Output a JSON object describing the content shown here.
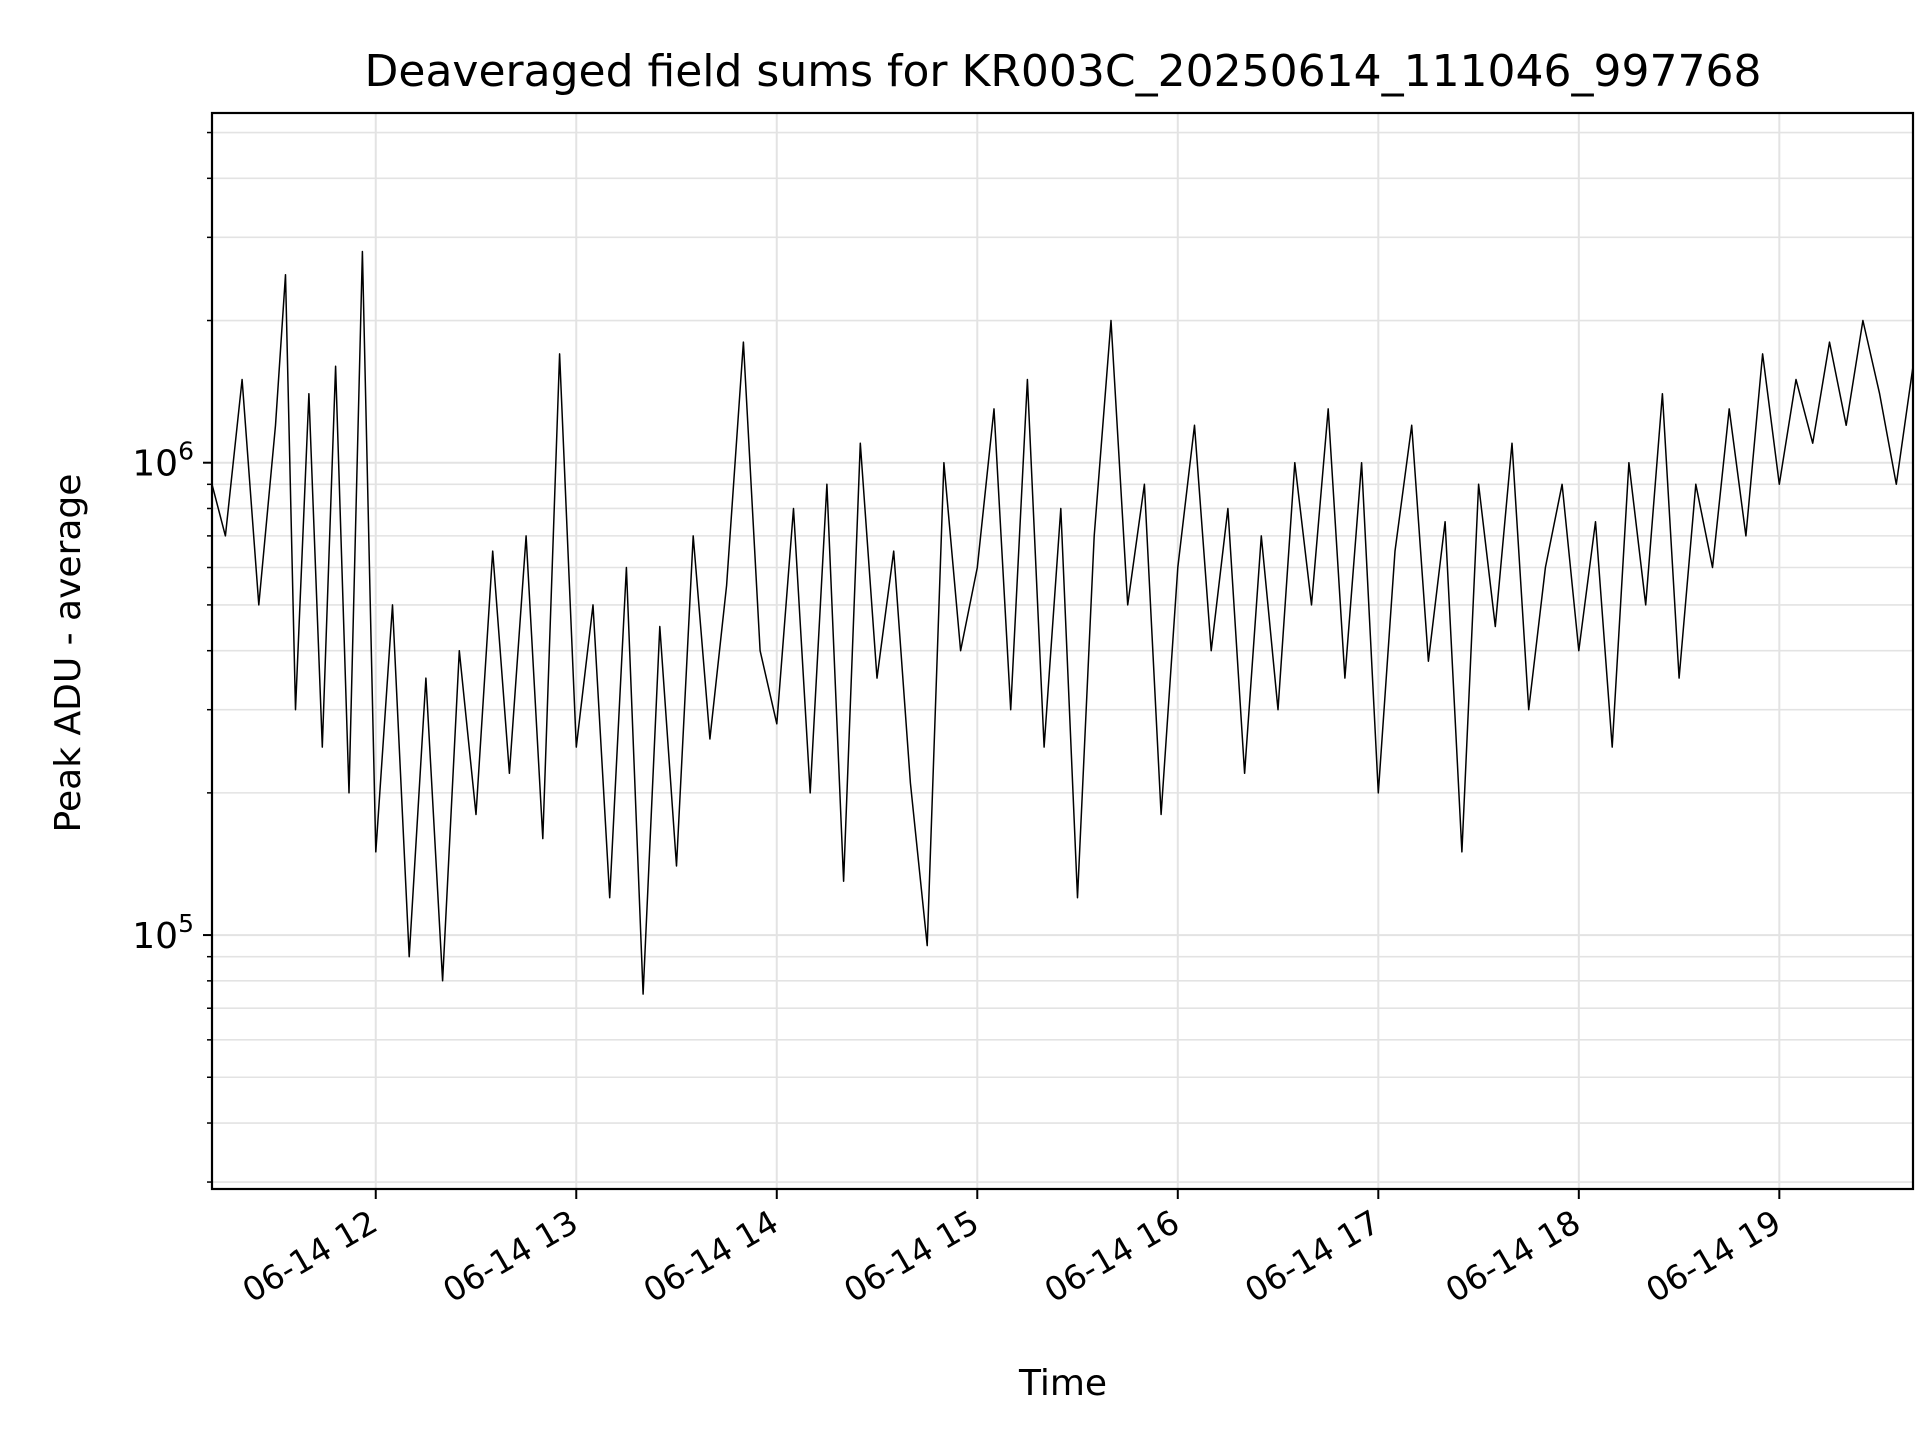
{
  "chart_data": {
    "type": "line",
    "title": "Deaveraged field sums for KR003C_20250614_111046_997768",
    "xlabel": "Time",
    "ylabel": "Peak ADU - average",
    "yscale": "log",
    "grid": true,
    "x_range": [
      "2025-06-14 11:11",
      "2025-06-14 19:40"
    ],
    "ylim": [
      29000,
      5500000
    ],
    "x_ticks": [
      {
        "value": "2025-06-14 12:00",
        "label": "06-14 12"
      },
      {
        "value": "2025-06-14 13:00",
        "label": "06-14 13"
      },
      {
        "value": "2025-06-14 14:00",
        "label": "06-14 14"
      },
      {
        "value": "2025-06-14 15:00",
        "label": "06-14 15"
      },
      {
        "value": "2025-06-14 16:00",
        "label": "06-14 16"
      },
      {
        "value": "2025-06-14 17:00",
        "label": "06-14 17"
      },
      {
        "value": "2025-06-14 18:00",
        "label": "06-14 18"
      },
      {
        "value": "2025-06-14 19:00",
        "label": "06-14 19"
      }
    ],
    "y_ticks": [
      {
        "value": 100000,
        "base": "10",
        "exponent": "5"
      },
      {
        "value": 1000000,
        "base": "10",
        "exponent": "6"
      }
    ],
    "series": [
      {
        "color": "#000000",
        "points": [
          [
            "2025-06-14 11:11",
            900000
          ],
          [
            "2025-06-14 11:15",
            700000
          ],
          [
            "2025-06-14 11:20",
            1500000
          ],
          [
            "2025-06-14 11:25",
            500000
          ],
          [
            "2025-06-14 11:30",
            1200000
          ],
          [
            "2025-06-14 11:33",
            2500000
          ],
          [
            "2025-06-14 11:36",
            300000
          ],
          [
            "2025-06-14 11:40",
            1400000
          ],
          [
            "2025-06-14 11:44",
            250000
          ],
          [
            "2025-06-14 11:48",
            1600000
          ],
          [
            "2025-06-14 11:52",
            200000
          ],
          [
            "2025-06-14 11:56",
            2800000
          ],
          [
            "2025-06-14 12:00",
            150000
          ],
          [
            "2025-06-14 12:05",
            500000
          ],
          [
            "2025-06-14 12:10",
            90000
          ],
          [
            "2025-06-14 12:15",
            350000
          ],
          [
            "2025-06-14 12:20",
            80000
          ],
          [
            "2025-06-14 12:25",
            400000
          ],
          [
            "2025-06-14 12:30",
            180000
          ],
          [
            "2025-06-14 12:35",
            650000
          ],
          [
            "2025-06-14 12:40",
            220000
          ],
          [
            "2025-06-14 12:45",
            700000
          ],
          [
            "2025-06-14 12:50",
            160000
          ],
          [
            "2025-06-14 12:55",
            1700000
          ],
          [
            "2025-06-14 13:00",
            250000
          ],
          [
            "2025-06-14 13:05",
            500000
          ],
          [
            "2025-06-14 13:10",
            120000
          ],
          [
            "2025-06-14 13:15",
            600000
          ],
          [
            "2025-06-14 13:20",
            75000
          ],
          [
            "2025-06-14 13:25",
            450000
          ],
          [
            "2025-06-14 13:30",
            140000
          ],
          [
            "2025-06-14 13:35",
            700000
          ],
          [
            "2025-06-14 13:40",
            260000
          ],
          [
            "2025-06-14 13:45",
            550000
          ],
          [
            "2025-06-14 13:50",
            1800000
          ],
          [
            "2025-06-14 13:55",
            400000
          ],
          [
            "2025-06-14 14:00",
            280000
          ],
          [
            "2025-06-14 14:05",
            800000
          ],
          [
            "2025-06-14 14:10",
            200000
          ],
          [
            "2025-06-14 14:15",
            900000
          ],
          [
            "2025-06-14 14:20",
            130000
          ],
          [
            "2025-06-14 14:25",
            1100000
          ],
          [
            "2025-06-14 14:30",
            350000
          ],
          [
            "2025-06-14 14:35",
            650000
          ],
          [
            "2025-06-14 14:40",
            210000
          ],
          [
            "2025-06-14 14:45",
            95000
          ],
          [
            "2025-06-14 14:50",
            1000000
          ],
          [
            "2025-06-14 14:55",
            400000
          ],
          [
            "2025-06-14 15:00",
            600000
          ],
          [
            "2025-06-14 15:05",
            1300000
          ],
          [
            "2025-06-14 15:10",
            300000
          ],
          [
            "2025-06-14 15:15",
            1500000
          ],
          [
            "2025-06-14 15:20",
            250000
          ],
          [
            "2025-06-14 15:25",
            800000
          ],
          [
            "2025-06-14 15:30",
            120000
          ],
          [
            "2025-06-14 15:35",
            700000
          ],
          [
            "2025-06-14 15:40",
            2000000
          ],
          [
            "2025-06-14 15:45",
            500000
          ],
          [
            "2025-06-14 15:50",
            900000
          ],
          [
            "2025-06-14 15:55",
            180000
          ],
          [
            "2025-06-14 16:00",
            600000
          ],
          [
            "2025-06-14 16:05",
            1200000
          ],
          [
            "2025-06-14 16:10",
            400000
          ],
          [
            "2025-06-14 16:15",
            800000
          ],
          [
            "2025-06-14 16:20",
            220000
          ],
          [
            "2025-06-14 16:25",
            700000
          ],
          [
            "2025-06-14 16:30",
            300000
          ],
          [
            "2025-06-14 16:35",
            1000000
          ],
          [
            "2025-06-14 16:40",
            500000
          ],
          [
            "2025-06-14 16:45",
            1300000
          ],
          [
            "2025-06-14 16:50",
            350000
          ],
          [
            "2025-06-14 16:55",
            1000000
          ],
          [
            "2025-06-14 17:00",
            200000
          ],
          [
            "2025-06-14 17:05",
            650000
          ],
          [
            "2025-06-14 17:10",
            1200000
          ],
          [
            "2025-06-14 17:15",
            380000
          ],
          [
            "2025-06-14 17:20",
            750000
          ],
          [
            "2025-06-14 17:25",
            150000
          ],
          [
            "2025-06-14 17:30",
            900000
          ],
          [
            "2025-06-14 17:35",
            450000
          ],
          [
            "2025-06-14 17:40",
            1100000
          ],
          [
            "2025-06-14 17:45",
            300000
          ],
          [
            "2025-06-14 17:50",
            600000
          ],
          [
            "2025-06-14 17:55",
            900000
          ],
          [
            "2025-06-14 18:00",
            400000
          ],
          [
            "2025-06-14 18:05",
            750000
          ],
          [
            "2025-06-14 18:10",
            250000
          ],
          [
            "2025-06-14 18:15",
            1000000
          ],
          [
            "2025-06-14 18:20",
            500000
          ],
          [
            "2025-06-14 18:25",
            1400000
          ],
          [
            "2025-06-14 18:30",
            350000
          ],
          [
            "2025-06-14 18:35",
            900000
          ],
          [
            "2025-06-14 18:40",
            600000
          ],
          [
            "2025-06-14 18:45",
            1300000
          ],
          [
            "2025-06-14 18:50",
            700000
          ],
          [
            "2025-06-14 18:55",
            1700000
          ],
          [
            "2025-06-14 19:00",
            900000
          ],
          [
            "2025-06-14 19:05",
            1500000
          ],
          [
            "2025-06-14 19:10",
            1100000
          ],
          [
            "2025-06-14 19:15",
            1800000
          ],
          [
            "2025-06-14 19:20",
            1200000
          ],
          [
            "2025-06-14 19:25",
            2000000
          ],
          [
            "2025-06-14 19:30",
            1400000
          ],
          [
            "2025-06-14 19:35",
            900000
          ],
          [
            "2025-06-14 19:40",
            1600000
          ]
        ]
      }
    ]
  }
}
